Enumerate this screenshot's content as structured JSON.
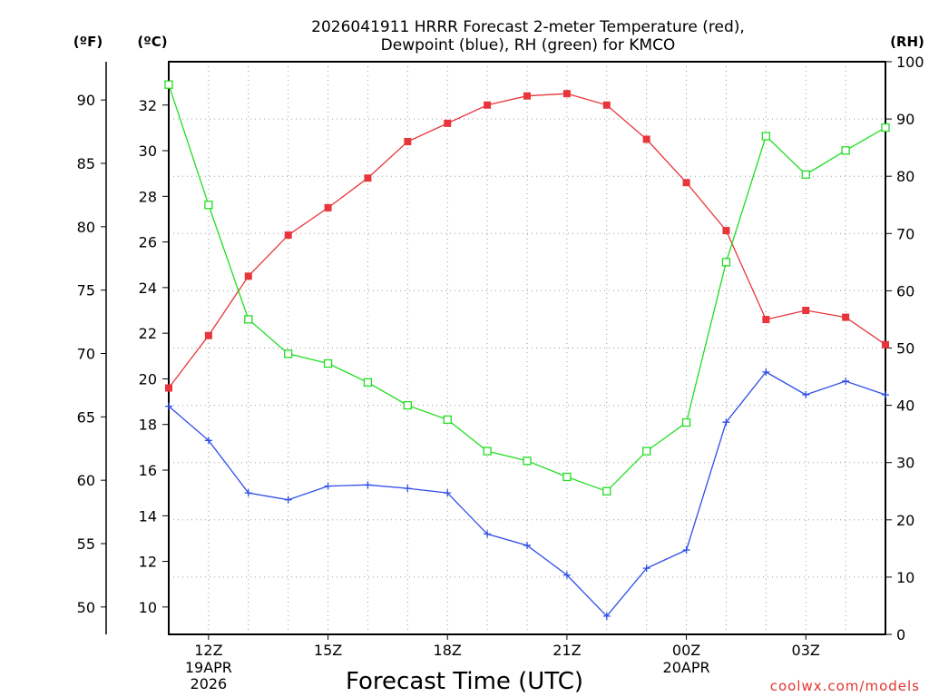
{
  "chart_data": {
    "type": "line",
    "title": [
      "2026041911 HRRR Forecast 2-meter Temperature (red),",
      "Dewpoint (blue), RH (green) for KMCO"
    ],
    "xlabel": "Forecast Time (UTC)",
    "credit": "coolwx.com/models",
    "units": {
      "f": "(ºF)",
      "c": "(ºC)",
      "rh": "(RH)"
    },
    "x_hours": [
      11,
      12,
      13,
      14,
      15,
      16,
      17,
      18,
      19,
      20,
      21,
      22,
      23,
      24,
      25,
      26,
      27,
      28,
      29
    ],
    "xlim": [
      11,
      29
    ],
    "x_ticks": [
      {
        "hour": 12,
        "label": "12Z",
        "sub": [
          "19APR",
          "2026"
        ]
      },
      {
        "hour": 15,
        "label": "15Z",
        "sub": []
      },
      {
        "hour": 18,
        "label": "18Z",
        "sub": []
      },
      {
        "hour": 21,
        "label": "21Z",
        "sub": []
      },
      {
        "hour": 24,
        "label": "00Z",
        "sub": [
          "20APR"
        ]
      },
      {
        "hour": 27,
        "label": "03Z",
        "sub": []
      }
    ],
    "c_axis": {
      "range": [
        8.8,
        33.9
      ],
      "ticks": [
        "10",
        "12",
        "14",
        "16",
        "18",
        "20",
        "22",
        "24",
        "26",
        "28",
        "30",
        "32"
      ]
    },
    "f_axis": {
      "ticks": [
        "50",
        "55",
        "60",
        "65",
        "70",
        "75",
        "80",
        "85",
        "90"
      ]
    },
    "rh_axis": {
      "range": [
        0,
        100
      ],
      "ticks": [
        "0",
        "10",
        "20",
        "30",
        "40",
        "50",
        "60",
        "70",
        "80",
        "90",
        "100"
      ]
    },
    "grid": true,
    "series": [
      {
        "name": "Temperature",
        "unit": "C",
        "color": "#e8353b",
        "marker": "filled-square",
        "values": [
          19.6,
          21.9,
          24.5,
          26.3,
          27.5,
          28.8,
          30.4,
          31.2,
          32.0,
          32.4,
          32.5,
          32.0,
          30.5,
          28.6,
          26.5,
          22.6,
          23.0,
          22.7,
          21.5
        ]
      },
      {
        "name": "Dewpoint",
        "unit": "C",
        "color": "#2e4de8",
        "marker": "plus",
        "values": [
          18.8,
          17.3,
          15.0,
          14.7,
          15.3,
          15.35,
          15.2,
          15.0,
          13.2,
          12.7,
          11.4,
          9.6,
          11.7,
          12.5,
          18.1,
          20.3,
          19.3,
          19.9,
          19.3
        ]
      },
      {
        "name": "RH",
        "unit": "%",
        "color": "#22dd22",
        "marker": "open-square",
        "values": [
          96,
          75,
          55,
          49,
          47.3,
          44,
          40,
          37.5,
          32,
          30.3,
          27.5,
          25,
          32,
          37,
          65,
          87,
          80.3,
          84.5,
          88.5
        ]
      }
    ]
  }
}
